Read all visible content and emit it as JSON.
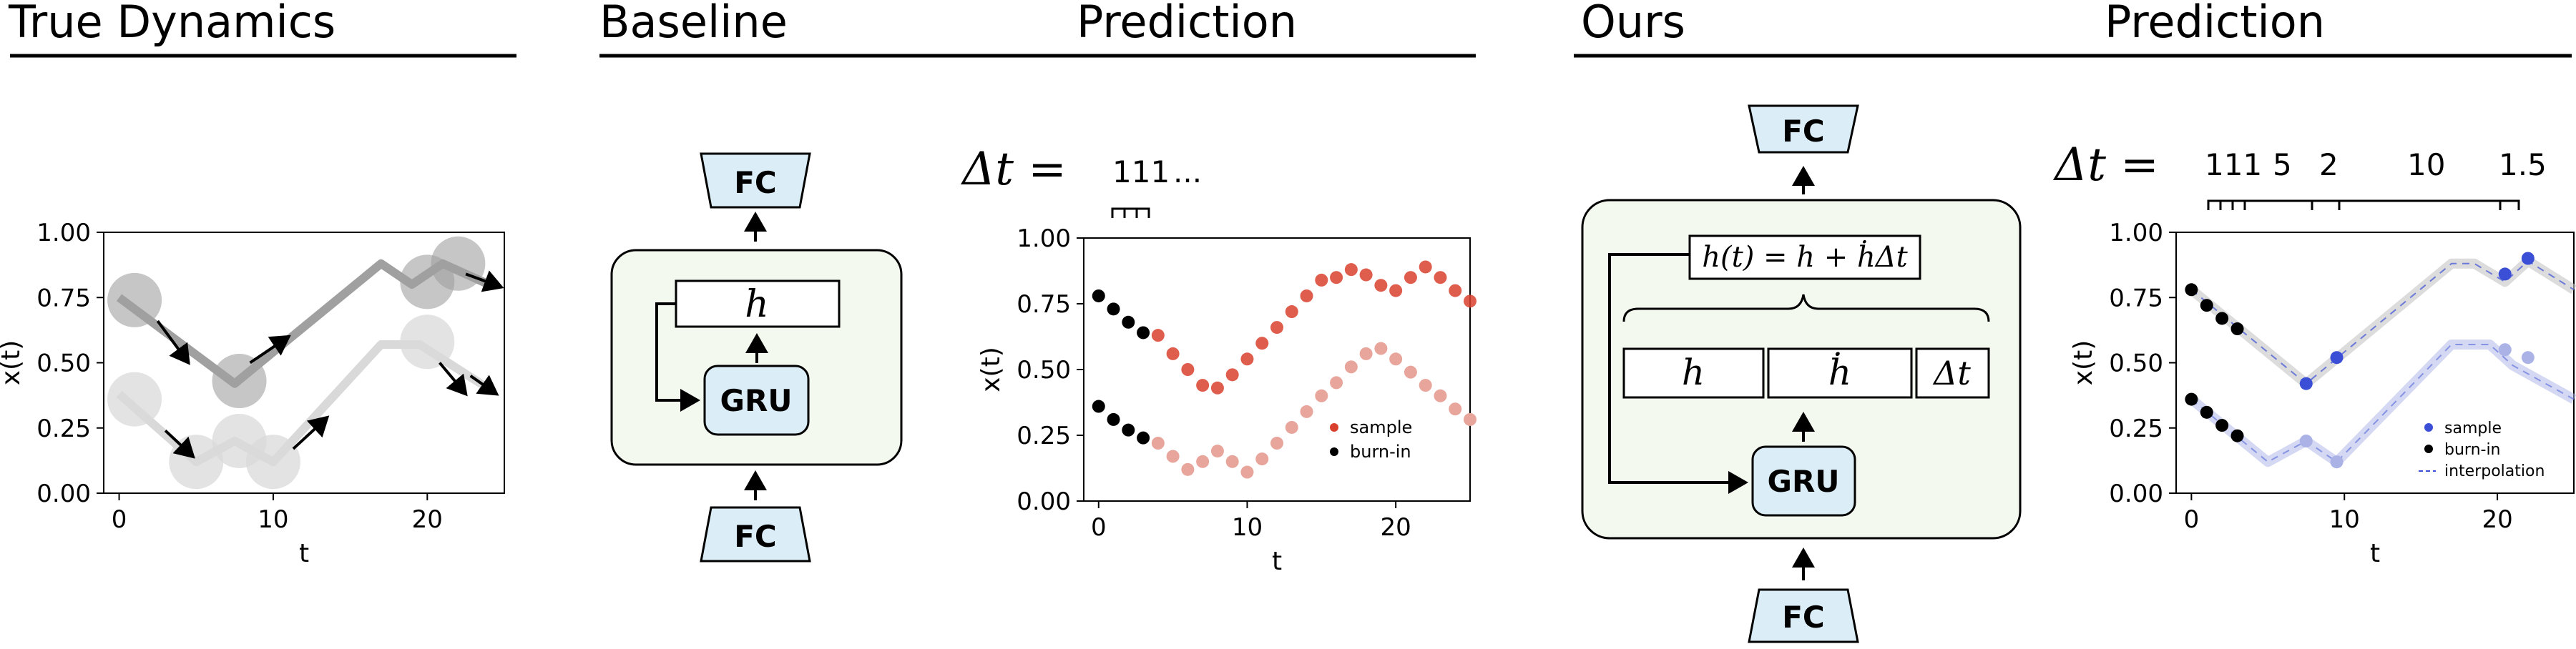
{
  "headers": {
    "true_dynamics": "True Dynamics",
    "baseline": "Baseline",
    "prediction_1": "Prediction",
    "ours": "Ours",
    "prediction_2": "Prediction"
  },
  "colors": {
    "fc_box": "#dbeef8",
    "gru_box": "#dbeef8",
    "cell_box": "#f3f9ef",
    "red": "#d9412e",
    "red_light": "#e8a59b",
    "blue": "#3a4fd6",
    "blue_light": "#aab2e6",
    "black": "#000000",
    "gray_dark": "#a0a0a0",
    "gray_light": "#d9d9d9"
  },
  "baseline_block": {
    "fc_top": "FC",
    "fc_bottom": "FC",
    "gru": "GRU",
    "hidden": "h"
  },
  "ours_block": {
    "fc_top": "FC",
    "fc_bottom": "FC",
    "gru": "GRU",
    "update": "h(t) = h + ḣΔt",
    "cell_h": "h",
    "cell_hdot": "ḣ",
    "cell_dt": "Δt"
  },
  "delta_t_label": "Δt =",
  "baseline_dt": {
    "values": "111",
    "ellipsis": "..."
  },
  "ours_dt": [
    "111",
    "5",
    "2",
    "10",
    "1.5"
  ],
  "chart_data": [
    {
      "type": "scatter",
      "panel": "true-dynamics",
      "xlabel": "t",
      "ylabel": "x(t)",
      "xlim": [
        -1,
        25
      ],
      "ylim": [
        0,
        1
      ],
      "x_ticks": [
        "0",
        "10",
        "20"
      ],
      "y_ticks": [
        "0.00",
        "0.25",
        "0.50",
        "0.75",
        "1.00"
      ],
      "series": [
        {
          "line": [
            [
              0,
              0.75
            ],
            [
              7.5,
              0.42
            ],
            [
              17,
              0.88
            ],
            [
              19,
              0.8
            ],
            [
              21,
              0.88
            ],
            [
              24,
              0.8
            ]
          ],
          "points": [
            [
              1,
              0.74
            ],
            [
              7.8,
              0.43
            ],
            [
              20,
              0.81
            ],
            [
              22,
              0.88
            ]
          ]
        },
        {
          "line": [
            [
              0,
              0.38
            ],
            [
              5,
              0.12
            ],
            [
              7.5,
              0.2
            ],
            [
              10,
              0.12
            ],
            [
              17,
              0.57
            ],
            [
              19.5,
              0.57
            ],
            [
              24,
              0.4
            ]
          ],
          "points": [
            [
              1,
              0.36
            ],
            [
              5,
              0.12
            ],
            [
              7.8,
              0.2
            ],
            [
              10,
              0.12
            ],
            [
              20,
              0.58
            ]
          ]
        }
      ],
      "arrows": [
        [
          [
            2.5,
            0.66
          ],
          [
            4.5,
            0.5
          ]
        ],
        [
          [
            8.5,
            0.5
          ],
          [
            11,
            0.6
          ]
        ],
        [
          [
            22.5,
            0.84
          ],
          [
            24.8,
            0.79
          ]
        ],
        [
          [
            3,
            0.24
          ],
          [
            4.8,
            0.14
          ]
        ],
        [
          [
            11.3,
            0.17
          ],
          [
            13.5,
            0.29
          ]
        ],
        [
          [
            20.8,
            0.5
          ],
          [
            22.5,
            0.38
          ]
        ],
        [
          [
            22.8,
            0.45
          ],
          [
            24.5,
            0.38
          ]
        ]
      ]
    },
    {
      "type": "scatter",
      "panel": "baseline-prediction",
      "xlabel": "t",
      "ylabel": "x(t)",
      "xlim": [
        -1,
        25
      ],
      "ylim": [
        0,
        1
      ],
      "x_ticks": [
        "0",
        "10",
        "20"
      ],
      "y_ticks": [
        "0.00",
        "0.25",
        "0.50",
        "0.75",
        "1.00"
      ],
      "legend": [
        "sample",
        "burn-in"
      ],
      "legend_position": "lower-right",
      "series": [
        {
          "name": "sample",
          "x": [
            4,
            5,
            6,
            7,
            8,
            9,
            10,
            11,
            12,
            13,
            14,
            15,
            16,
            17,
            18,
            19,
            20,
            21,
            22,
            23,
            24,
            25
          ],
          "y": [
            0.63,
            0.56,
            0.5,
            0.44,
            0.43,
            0.48,
            0.54,
            0.6,
            0.66,
            0.72,
            0.78,
            0.84,
            0.85,
            0.88,
            0.86,
            0.82,
            0.8,
            0.85,
            0.89,
            0.85,
            0.8,
            0.76
          ],
          "x2": [
            4,
            5,
            6,
            7,
            8,
            9,
            10,
            11,
            12,
            13,
            14,
            15,
            16,
            17,
            18,
            19,
            20,
            21,
            22,
            23,
            24,
            25
          ],
          "y2": [
            0.22,
            0.17,
            0.12,
            0.15,
            0.19,
            0.15,
            0.11,
            0.16,
            0.22,
            0.28,
            0.34,
            0.4,
            0.45,
            0.51,
            0.56,
            0.58,
            0.54,
            0.49,
            0.44,
            0.4,
            0.35,
            0.31
          ]
        },
        {
          "name": "burn-in",
          "x": [
            0,
            1,
            2,
            3
          ],
          "y": [
            0.78,
            0.73,
            0.68,
            0.64
          ],
          "y2": [
            0.36,
            0.31,
            0.27,
            0.24
          ]
        }
      ]
    },
    {
      "type": "scatter",
      "panel": "ours-prediction",
      "xlabel": "t",
      "ylabel": "x(t)",
      "xlim": [
        -1,
        25
      ],
      "ylim": [
        0,
        1
      ],
      "x_ticks": [
        "0",
        "10",
        "20"
      ],
      "y_ticks": [
        "0.00",
        "0.25",
        "0.50",
        "0.75",
        "1.00"
      ],
      "legend": [
        "sample",
        "burn-in",
        "interpolation"
      ],
      "legend_position": "lower-right",
      "series": [
        {
          "name": "sample",
          "points": [
            [
              7.5,
              0.42
            ],
            [
              9.5,
              0.52
            ],
            [
              20.5,
              0.84
            ],
            [
              22,
              0.9
            ]
          ],
          "points2": [
            [
              7.5,
              0.2
            ],
            [
              9.5,
              0.12
            ],
            [
              20.5,
              0.55
            ],
            [
              22,
              0.52
            ]
          ]
        },
        {
          "name": "burn-in",
          "points": [
            [
              0,
              0.78
            ],
            [
              1,
              0.72
            ],
            [
              2,
              0.67
            ],
            [
              3,
              0.63
            ]
          ],
          "points2": [
            [
              0,
              0.36
            ],
            [
              1,
              0.31
            ],
            [
              2,
              0.26
            ],
            [
              3,
              0.22
            ]
          ]
        },
        {
          "name": "interpolation",
          "line": [
            [
              0,
              0.78
            ],
            [
              7.5,
              0.42
            ],
            [
              17,
              0.88
            ],
            [
              18.5,
              0.88
            ],
            [
              20.5,
              0.81
            ],
            [
              22,
              0.89
            ],
            [
              25,
              0.78
            ]
          ],
          "line2": [
            [
              0,
              0.36
            ],
            [
              5,
              0.12
            ],
            [
              7.5,
              0.2
            ],
            [
              9.5,
              0.12
            ],
            [
              17,
              0.57
            ],
            [
              19.5,
              0.57
            ],
            [
              21,
              0.49
            ],
            [
              25,
              0.36
            ]
          ]
        }
      ]
    }
  ]
}
